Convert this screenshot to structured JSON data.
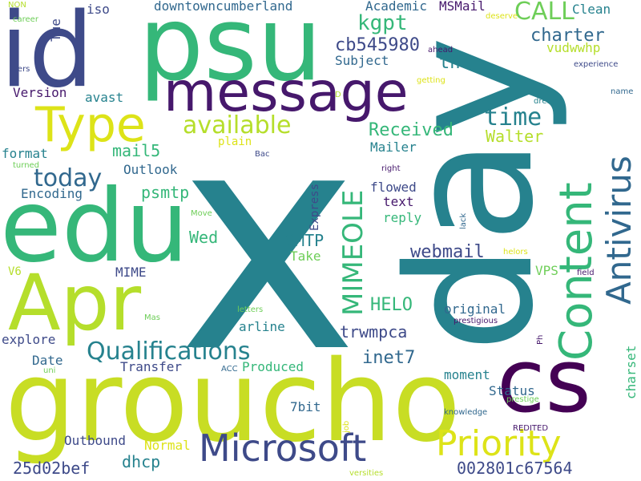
{
  "palette": {
    "dark_purple": "#46186c",
    "indigo": "#3e4a89",
    "blue": "#31688e",
    "teal": "#26828e",
    "green": "#35b779",
    "light_green": "#6ece58",
    "yellow_green": "#b5de2b",
    "yellow": "#dde318"
  },
  "words": [
    {
      "id": "x",
      "text": "x",
      "color": "#26828e"
    },
    {
      "id": "day",
      "text": "day",
      "color": "#26828e"
    },
    {
      "id": "psu",
      "text": "psu",
      "color": "#35b779"
    },
    {
      "id": "id",
      "text": "id",
      "color": "#3e4a89"
    },
    {
      "id": "groucho",
      "text": "groucho",
      "color": "#c8dd24"
    },
    {
      "id": "edu",
      "text": "edu",
      "color": "#35b779"
    },
    {
      "id": "apr",
      "text": "Apr",
      "color": "#b5de2b"
    },
    {
      "id": "cs",
      "text": "cs",
      "color": "#440154"
    },
    {
      "id": "message",
      "text": "message",
      "color": "#46186c"
    },
    {
      "id": "type",
      "text": "Type",
      "color": "#dde318"
    },
    {
      "id": "microsoft",
      "text": "Microsoft",
      "color": "#3e4a89"
    },
    {
      "id": "priority",
      "text": "Priority",
      "color": "#dde318"
    },
    {
      "id": "content",
      "text": "Content",
      "color": "#35b779"
    },
    {
      "id": "antivirus",
      "text": "Antivirus",
      "color": "#31688e"
    },
    {
      "id": "qualifications",
      "text": "Qualifications",
      "color": "#26828e"
    },
    {
      "id": "mimeole",
      "text": "MIMEOLE",
      "color": "#35b779"
    },
    {
      "id": "available",
      "text": "available",
      "color": "#b5de2b"
    },
    {
      "id": "today",
      "text": "today",
      "color": "#31688e"
    },
    {
      "id": "call",
      "text": "CALL",
      "color": "#6ece58"
    },
    {
      "id": "time",
      "text": "time",
      "color": "#26828e"
    },
    {
      "id": "kgpt",
      "text": "kgpt",
      "color": "#35b779"
    },
    {
      "id": "cb545980",
      "text": "cb545980",
      "color": "#3e4a89"
    },
    {
      "id": "charter",
      "text": "charter",
      "color": "#31688e"
    },
    {
      "id": "received",
      "text": "Received",
      "color": "#35b779"
    },
    {
      "id": "webmail",
      "text": "webmail",
      "color": "#3e4a89"
    },
    {
      "id": "inet7",
      "text": "inet7",
      "color": "#31688e"
    },
    {
      "id": "helo",
      "text": "HELO",
      "color": "#35b779"
    },
    {
      "id": "trwmpca",
      "text": "trwmpca",
      "color": "#3e4a89"
    },
    {
      "id": "smtp",
      "text": "SMTP",
      "color": "#26828e"
    },
    {
      "id": "mail5",
      "text": "mail5",
      "color": "#35b779"
    },
    {
      "id": "psmtp",
      "text": "psmtp",
      "color": "#35b779"
    },
    {
      "id": "wed",
      "text": "Wed",
      "color": "#35b779"
    },
    {
      "id": "dhcp",
      "text": "dhcp",
      "color": "#26828e"
    },
    {
      "id": "25d02bef",
      "text": "25d02bef",
      "color": "#3e4a89"
    },
    {
      "id": "002801c67564",
      "text": "002801c67564",
      "color": "#3e4a89"
    },
    {
      "id": "walter",
      "text": "Walter",
      "color": "#b5de2b"
    },
    {
      "id": "downtowncumberland",
      "text": "downtowncumberland",
      "color": "#31688e"
    },
    {
      "id": "academic",
      "text": "Academic",
      "color": "#31688e"
    },
    {
      "id": "msmail",
      "text": "MSMail",
      "color": "#46186c"
    },
    {
      "id": "clean",
      "text": "Clean",
      "color": "#26828e"
    },
    {
      "id": "iso",
      "text": "iso",
      "color": "#3e4a89"
    },
    {
      "id": "tue",
      "text": "Tue",
      "color": "#3e4a89"
    },
    {
      "id": "version",
      "text": "Version",
      "color": "#46186c"
    },
    {
      "id": "avast",
      "text": "avast",
      "color": "#26828e"
    },
    {
      "id": "subject",
      "text": "Subject",
      "color": "#31688e"
    },
    {
      "id": "tn",
      "text": "tn",
      "color": "#26828e"
    },
    {
      "id": "vudwwhp",
      "text": "vudwwhp",
      "color": "#b5de2b"
    },
    {
      "id": "format",
      "text": "format",
      "color": "#26828e"
    },
    {
      "id": "outlook",
      "text": "Outlook",
      "color": "#31688e"
    },
    {
      "id": "encoding",
      "text": "Encoding",
      "color": "#31688e"
    },
    {
      "id": "mailer",
      "text": "Mailer",
      "color": "#26828e"
    },
    {
      "id": "flowed",
      "text": "flowed",
      "color": "#3e4a89"
    },
    {
      "id": "text",
      "text": "text",
      "color": "#46186c"
    },
    {
      "id": "reply",
      "text": "reply",
      "color": "#35b779"
    },
    {
      "id": "express",
      "text": "Express",
      "color": "#3e4a89"
    },
    {
      "id": "take",
      "text": "Take",
      "color": "#6ece58"
    },
    {
      "id": "mime",
      "text": "MIME",
      "color": "#3e4a89"
    },
    {
      "id": "original",
      "text": "original",
      "color": "#31688e"
    },
    {
      "id": "arline",
      "text": "arline",
      "color": "#26828e"
    },
    {
      "id": "explore",
      "text": "explore",
      "color": "#3e4a89"
    },
    {
      "id": "date",
      "text": "Date",
      "color": "#31688e"
    },
    {
      "id": "transfer",
      "text": "Transfer",
      "color": "#3e4a89"
    },
    {
      "id": "produced",
      "text": "Produced",
      "color": "#35b779"
    },
    {
      "id": "moment",
      "text": "moment",
      "color": "#26828e"
    },
    {
      "id": "status",
      "text": "Status",
      "color": "#31688e"
    },
    {
      "id": "7bit",
      "text": "7bit",
      "color": "#31688e"
    },
    {
      "id": "outbound",
      "text": "Outbound",
      "color": "#3e4a89"
    },
    {
      "id": "normal",
      "text": "Normal",
      "color": "#dde318"
    },
    {
      "id": "vps",
      "text": "VPS",
      "color": "#6ece58"
    },
    {
      "id": "charset",
      "text": "charset",
      "color": "#35b779"
    },
    {
      "id": "plain",
      "text": "plain",
      "color": "#dde318"
    },
    {
      "id": "v6",
      "text": "V6",
      "color": "#b5de2b"
    },
    {
      "id": "ter",
      "text": "ters",
      "color": "#3e4a89"
    },
    {
      "id": "career",
      "text": "career",
      "color": "#6ece58"
    },
    {
      "id": "non",
      "text": "NON",
      "color": "#b5de2b"
    },
    {
      "id": "deserve",
      "text": "deserve",
      "color": "#dde318"
    },
    {
      "id": "ahead",
      "text": "ahead",
      "color": "#46186c"
    },
    {
      "id": "experience",
      "text": "experience",
      "color": "#3e4a89"
    },
    {
      "id": "name",
      "text": "name",
      "color": "#31688e"
    },
    {
      "id": "getting",
      "text": "getting",
      "color": "#dde318"
    },
    {
      "id": "dreams",
      "text": "dreams",
      "color": "#26828e"
    },
    {
      "id": "d",
      "text": "D",
      "color": "#b5de2b"
    },
    {
      "id": "turned",
      "text": "turned",
      "color": "#6ece58"
    },
    {
      "id": "bac",
      "text": "Bac",
      "color": "#3e4a89"
    },
    {
      "id": "right",
      "text": "right",
      "color": "#46186c"
    },
    {
      "id": "move",
      "text": "Move",
      "color": "#6ece58"
    },
    {
      "id": "lack",
      "text": "lack",
      "color": "#31688e"
    },
    {
      "id": "helors",
      "text": "helors",
      "color": "#dde318"
    },
    {
      "id": "field",
      "text": "field",
      "color": "#46186c"
    },
    {
      "id": "letters",
      "text": "letters",
      "color": "#6ece58"
    },
    {
      "id": "mas",
      "text": "Mas",
      "color": "#6ece58"
    },
    {
      "id": "prestigious",
      "text": "prestigious",
      "color": "#46186c"
    },
    {
      "id": "ph",
      "text": "Ph",
      "color": "#46186c"
    },
    {
      "id": "uni",
      "text": "uni",
      "color": "#6ece58"
    },
    {
      "id": "acc",
      "text": "ACC",
      "color": "#31688e"
    },
    {
      "id": "prestige",
      "text": "prestige",
      "color": "#6ece58"
    },
    {
      "id": "knowledge",
      "text": "knowledge",
      "color": "#31688e"
    },
    {
      "id": "job",
      "text": "job",
      "color": "#dde318"
    },
    {
      "id": "redited",
      "text": "REDITED",
      "color": "#46186c"
    },
    {
      "id": "versities",
      "text": "versities",
      "color": "#b5de2b"
    }
  ]
}
